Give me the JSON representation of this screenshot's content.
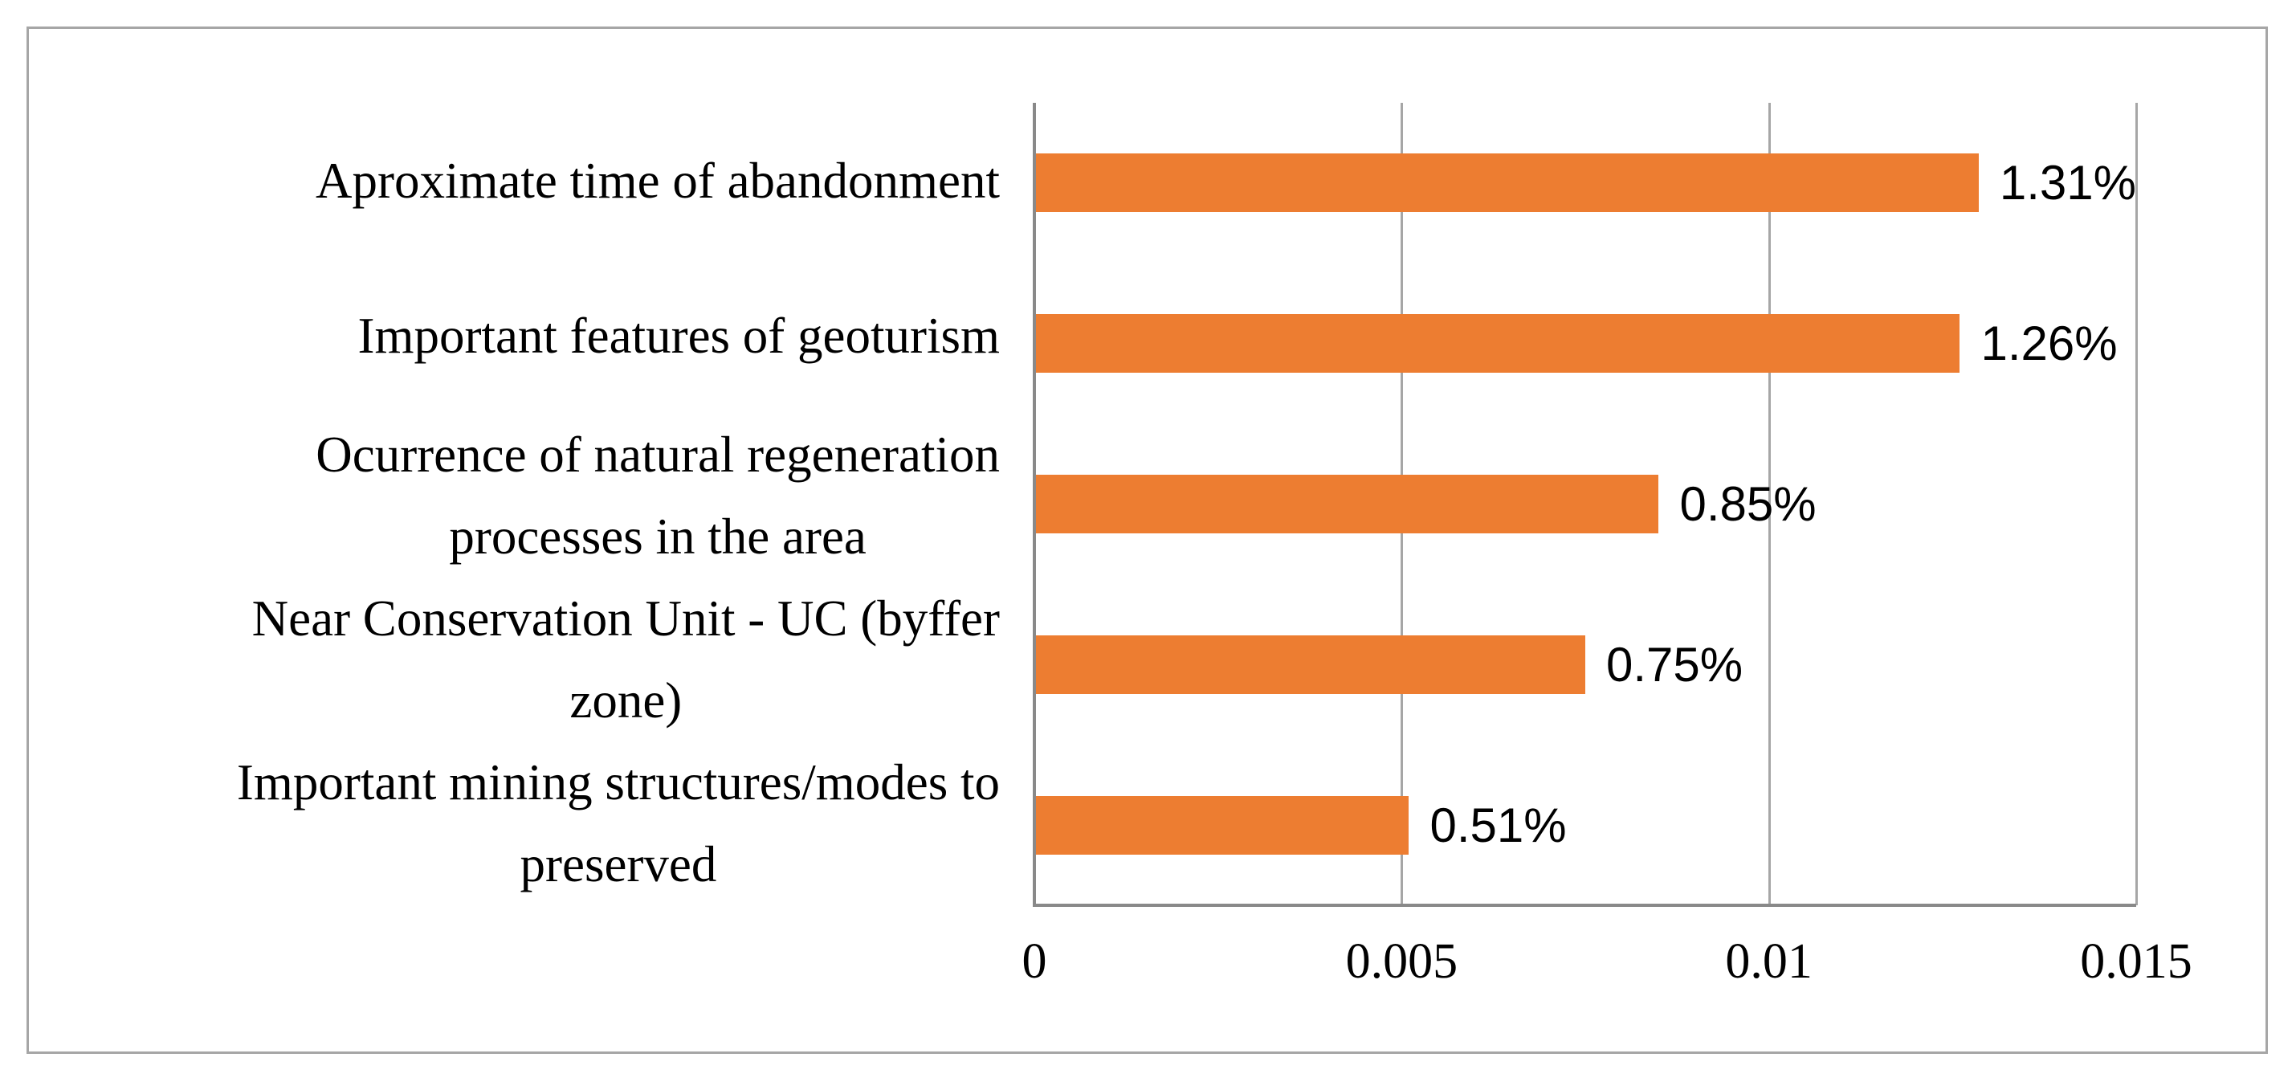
{
  "figure": {
    "background": "#FFFFFF",
    "border_color": "#A6A6A6"
  },
  "chart_data": {
    "type": "bar",
    "orientation": "horizontal",
    "title": "",
    "xlabel": "",
    "ylabel": "",
    "categories": [
      "Aproximate time of abandonment",
      "Important features of geoturism",
      "Ocurrence of natural regeneration\nprocesses in the area",
      "Near Conservation Unit - UC (byffer\nzone)",
      "Important mining structures/modes to\npreserved"
    ],
    "values": [
      0.0131,
      0.0126,
      0.0085,
      0.0075,
      0.0051
    ],
    "data_labels": [
      "1.31%",
      "1.26%",
      "0.85%",
      "0.75%",
      "0.51%"
    ],
    "x_ticks": [
      {
        "label": "0",
        "value": 0
      },
      {
        "label": "0.005",
        "value": 0.005
      },
      {
        "label": "0.01",
        "value": 0.01
      },
      {
        "label": "0.015",
        "value": 0.015
      }
    ],
    "xlim": [
      0,
      0.015
    ],
    "grid": "vertical-gridlines-on",
    "legend_position": "none",
    "bar_color": "#ED7D31",
    "gridline_color": "#A6A6A6",
    "axis_color": "#898989",
    "text_color": "#000000"
  }
}
